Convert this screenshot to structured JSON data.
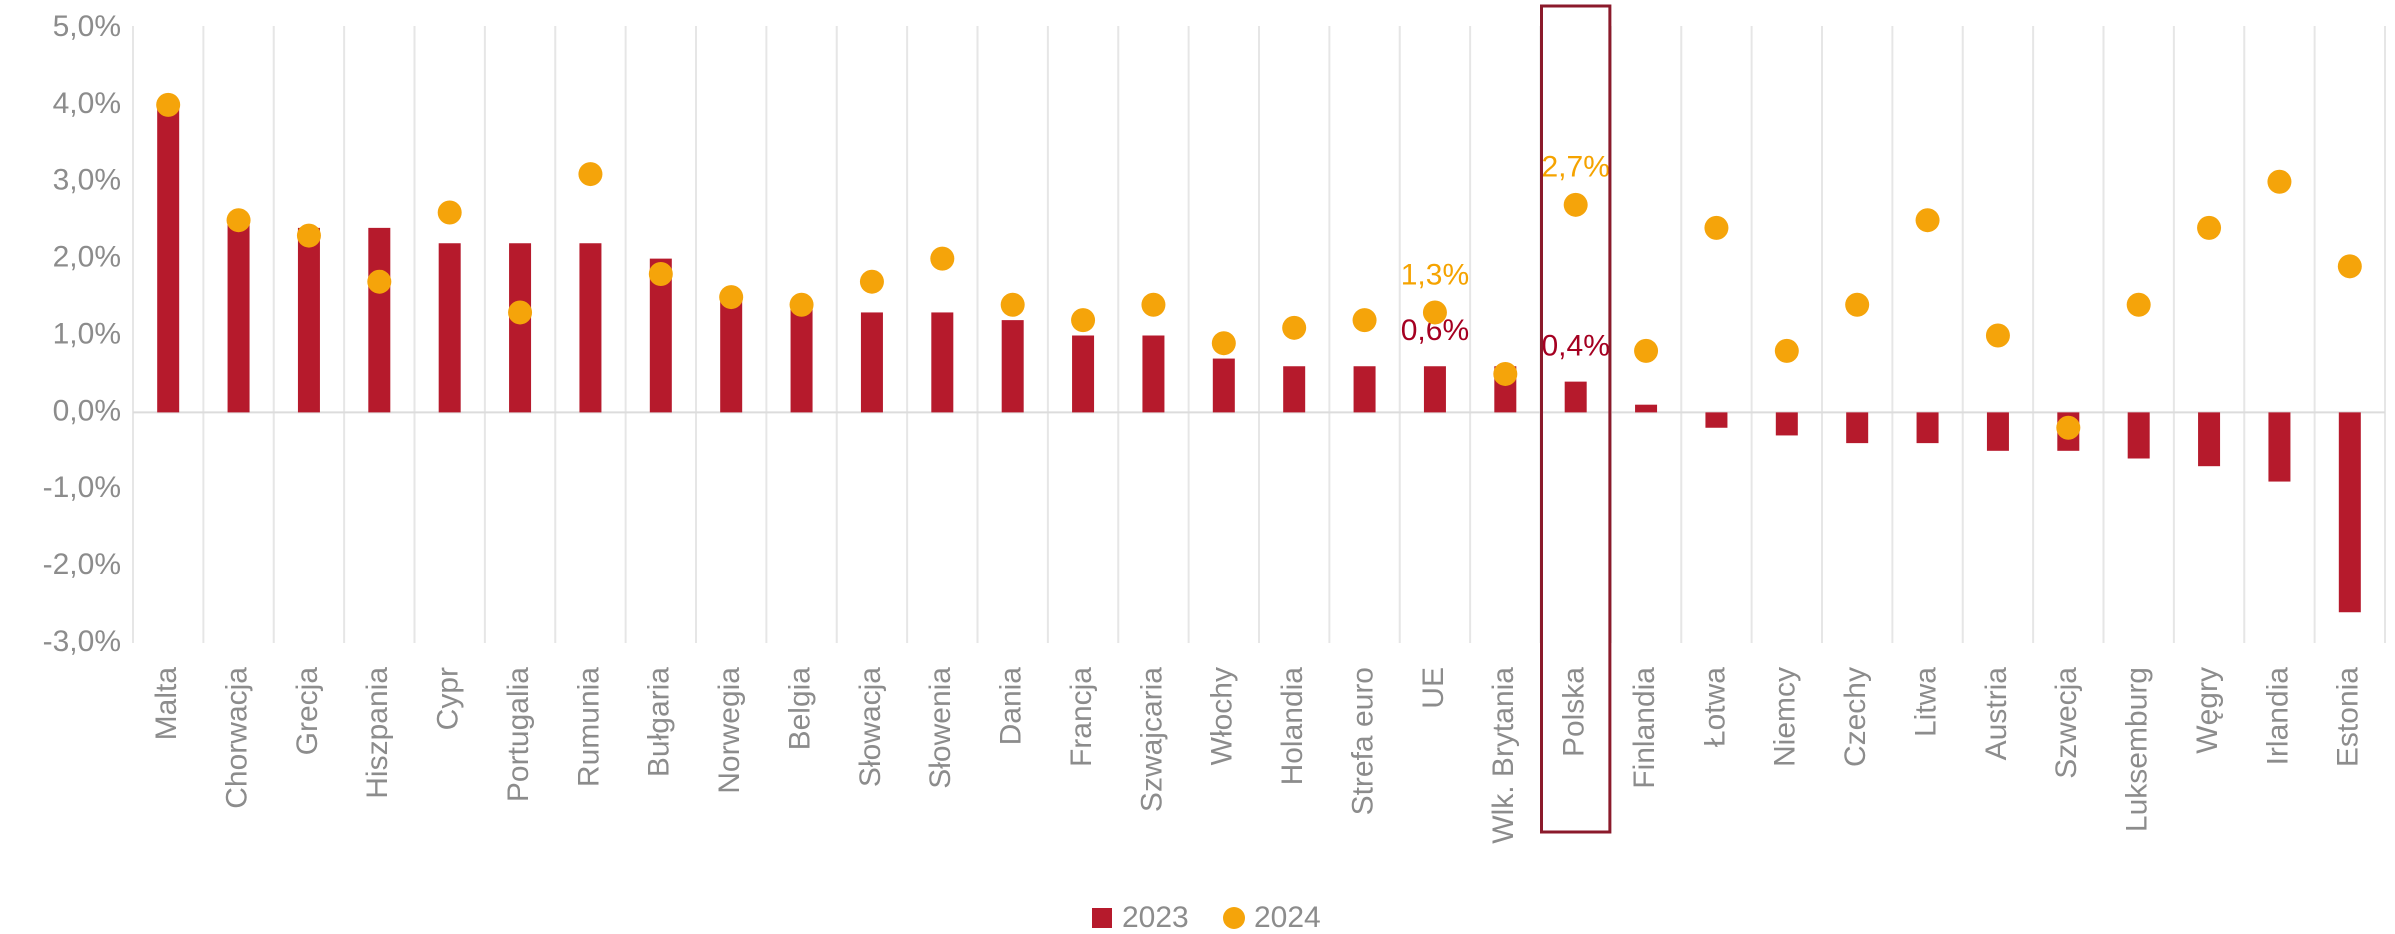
{
  "chart_data": {
    "type": "bar_dot",
    "categories": [
      "Malta",
      "Chorwacja",
      "Grecja",
      "Hiszpania",
      "Cypr",
      "Portugalia",
      "Rumunia",
      "Bułgaria",
      "Norwegia",
      "Belgia",
      "Słowacja",
      "Słowenia",
      "Dania",
      "Francja",
      "Szwajcaria",
      "Włochy",
      "Holandia",
      "Strefa euro",
      "UE",
      "Wlk. Brytania",
      "Polska",
      "Finlandia",
      "Łotwa",
      "Niemcy",
      "Czechy",
      "Litwa",
      "Austria",
      "Szwecja",
      "Luksemburg",
      "Węgry",
      "Irlandia",
      "Estonia"
    ],
    "series": [
      {
        "name": "2023",
        "kind": "bar",
        "color": "#b61a2c",
        "label_color": "#a50021",
        "values": [
          4.0,
          2.5,
          2.4,
          2.4,
          2.2,
          2.2,
          2.2,
          2.0,
          1.5,
          1.4,
          1.3,
          1.3,
          1.2,
          1.0,
          1.0,
          0.7,
          0.6,
          0.6,
          0.6,
          0.6,
          0.4,
          0.1,
          -0.2,
          -0.3,
          -0.4,
          -0.4,
          -0.5,
          -0.5,
          -0.6,
          -0.7,
          -0.9,
          -2.6
        ],
        "value_labels": [
          null,
          null,
          null,
          null,
          null,
          null,
          null,
          null,
          null,
          null,
          null,
          null,
          null,
          null,
          null,
          null,
          null,
          null,
          "0,6%",
          null,
          "0,4%",
          null,
          null,
          null,
          null,
          null,
          null,
          null,
          null,
          null,
          null,
          null
        ]
      },
      {
        "name": "2024",
        "kind": "dot",
        "color": "#f5a40a",
        "label_color": "#f5a300",
        "values": [
          4.0,
          2.5,
          2.3,
          1.7,
          2.6,
          1.3,
          3.1,
          1.8,
          1.5,
          1.4,
          1.7,
          2.0,
          1.4,
          1.2,
          1.4,
          0.9,
          1.1,
          1.2,
          1.3,
          0.5,
          2.7,
          0.8,
          2.4,
          0.8,
          1.4,
          2.5,
          1.0,
          -0.2,
          1.4,
          2.4,
          3.0,
          1.9
        ],
        "value_labels": [
          null,
          null,
          null,
          null,
          null,
          null,
          null,
          null,
          null,
          null,
          null,
          null,
          null,
          null,
          null,
          null,
          null,
          null,
          "1,3%",
          null,
          "2,7%",
          null,
          null,
          null,
          null,
          null,
          null,
          null,
          null,
          null,
          null,
          null
        ]
      }
    ],
    "ylim": [
      -3,
      5
    ],
    "yticks": [
      {
        "value": 5,
        "label": "5,0%"
      },
      {
        "value": 4,
        "label": "4,0%"
      },
      {
        "value": 3,
        "label": "3,0%"
      },
      {
        "value": 2,
        "label": "2,0%"
      },
      {
        "value": 1,
        "label": "1,0%"
      },
      {
        "value": 0,
        "label": "0,0%"
      },
      {
        "value": -1,
        "label": "-1,0%"
      },
      {
        "value": -2,
        "label": "-2,0%"
      },
      {
        "value": -3,
        "label": "-3,0%"
      }
    ],
    "grid": "vertical",
    "highlight": "Polska",
    "legend": "bottom"
  }
}
